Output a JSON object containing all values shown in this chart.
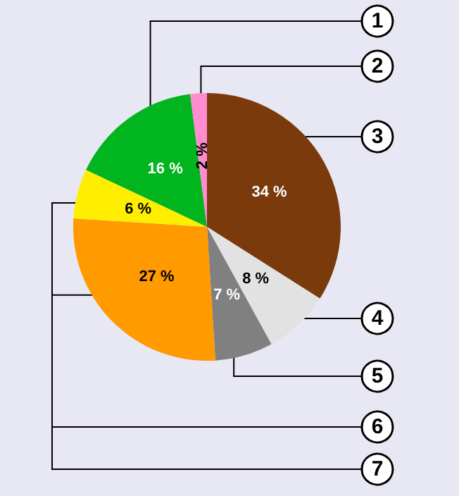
{
  "chart_data": {
    "type": "pie",
    "categories": [
      "3",
      "4",
      "5",
      "6",
      "7",
      "1",
      "2"
    ],
    "values": [
      34,
      8,
      7,
      27,
      6,
      16,
      2
    ],
    "colors": [
      "#7a3a0c",
      "#e2e2e2",
      "#808080",
      "#ff9a00",
      "#ffee00",
      "#00b51d",
      "#ff8cd0"
    ],
    "value_labels": [
      "34 %",
      "8 %",
      "7 %",
      "27 %",
      "6 %",
      "16 %",
      "2 %"
    ],
    "legend": false
  }
}
